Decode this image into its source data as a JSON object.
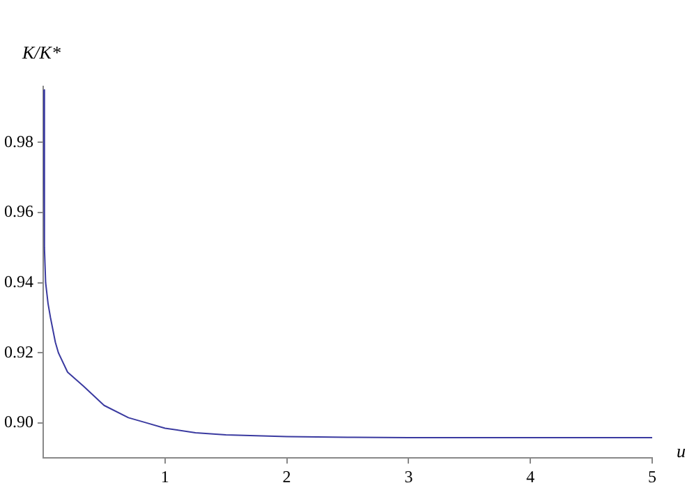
{
  "chart_data": {
    "type": "line",
    "xlabel": "u",
    "ylabel": "K/K*",
    "series": [
      {
        "color": "#3a3aa0",
        "x": [
          0,
          0.01,
          0.02,
          0.04,
          0.06,
          0.1,
          0.125,
          0.2,
          0.33,
          0.5,
          0.7,
          0.85,
          1,
          1.25,
          1.5,
          2,
          2.5,
          3,
          4,
          5
        ],
        "values": [
          0.995,
          0.95,
          0.94,
          0.934,
          0.93,
          0.923,
          0.92,
          0.9145,
          0.9105,
          0.905,
          0.9015,
          0.9,
          0.8985,
          0.8972,
          0.8966,
          0.8961,
          0.8959,
          0.8958,
          0.8958,
          0.8958
        ]
      }
    ],
    "xlim": [
      0,
      5
    ],
    "ylim": [
      0.89,
      0.996
    ],
    "xticks": [
      1,
      2,
      3,
      4,
      5
    ],
    "yticks": [
      {
        "value": 0.9,
        "label": "0.90"
      },
      {
        "value": 0.92,
        "label": "0.92"
      },
      {
        "value": 0.94,
        "label": "0.94"
      },
      {
        "value": 0.96,
        "label": "0.96"
      },
      {
        "value": 0.98,
        "label": "0.98"
      }
    ],
    "grid": false,
    "legend": false,
    "marker": "none",
    "line_style": "solid"
  }
}
